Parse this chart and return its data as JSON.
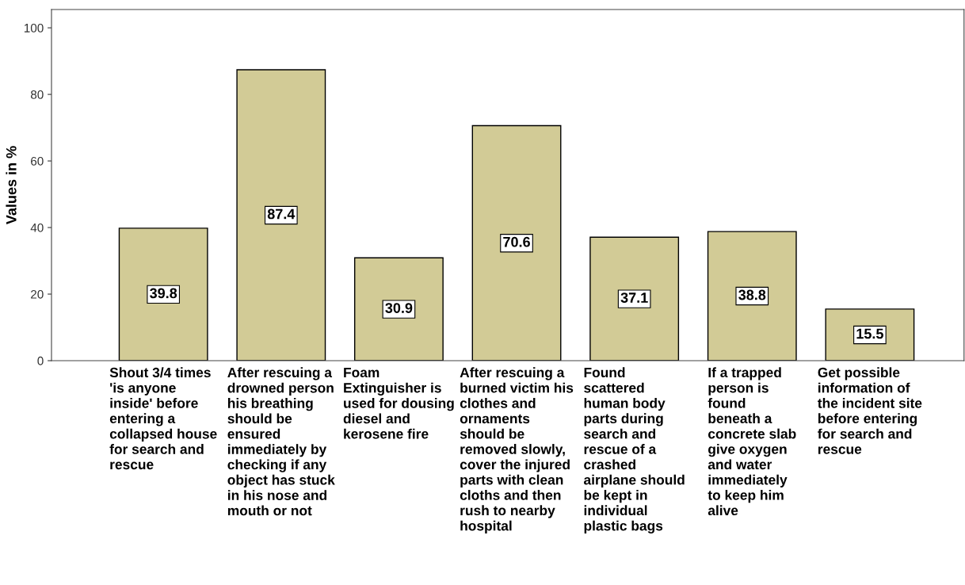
{
  "chart_data": {
    "type": "bar",
    "ylabel": "Values in %",
    "categories": [
      "Shout 3/4 times\n'is anyone\ninside' before\nentering a\ncollapsed house\nfor search and\nrescue",
      "After rescuing a\ndrowned person\nhis breathing\nshould be\nensured\nimmediately by\nchecking if any\nobject has stuck\nin his nose and\nmouth or not",
      "Foam\nExtinguisher is\nused for dousing\ndiesel and\nkerosene fire",
      "After rescuing a\nburned victim his\nclothes and\nornaments\nshould be\nremoved slowly,\ncover the injured\nparts with clean\ncloths and then\nrush to nearby\nhospital",
      "Found\nscattered\nhuman body\nparts during\nsearch and\nrescue of a\ncrashed\nairplane should\nbe kept in\nindividual\nplastic bags",
      "If a trapped\nperson is\nfound\nbeneath a\nconcrete slab\ngive oxygen\nand water\nimmediately\nto keep him\nalive",
      "Get possible\ninformation of\nthe incident site\nbefore entering\nfor search and\nrescue"
    ],
    "values": [
      39.8,
      87.4,
      30.9,
      70.6,
      37.1,
      38.8,
      15.5
    ],
    "color": "#d2cb96",
    "ylim": [
      0,
      105.5
    ],
    "yticks": [
      0,
      20,
      40,
      60,
      80,
      100
    ],
    "data_labels": true,
    "grid": false,
    "legend": false
  }
}
